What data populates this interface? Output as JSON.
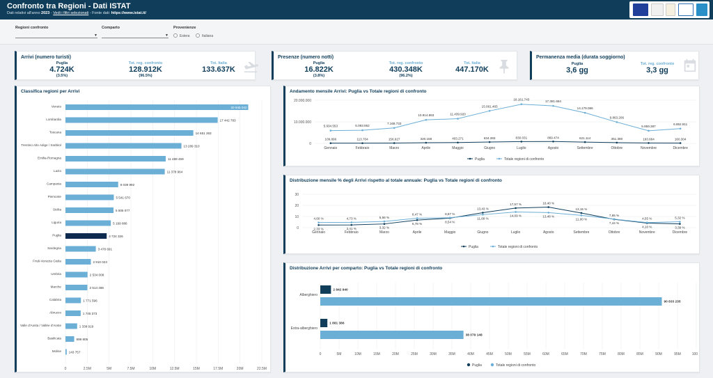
{
  "header": {
    "title": "Confronto tra Regioni - Dati ISTAT",
    "sub_prefix": "Dati relativi all'anno ",
    "year": "2023",
    "sub_sep1": " - ",
    "filters_link": "Vedi i filtri selezionati",
    "sub_sep2": " - Fonte dati: ",
    "source": "https://www.istat.it/"
  },
  "filters": {
    "regioni_label": "Regioni confronto",
    "comparto_label": "Comparto",
    "provenienze_label": "Provenienze",
    "options": [
      "Estera",
      "Italiana"
    ]
  },
  "kpis": {
    "arrivi": {
      "title": "Arrivi (numero turisti)",
      "puglia_label": "Puglia",
      "puglia_value": "4.724K",
      "puglia_pct": "(3.5%)",
      "conf_label": "Tot. reg. confronto",
      "conf_value": "128.912K",
      "conf_pct": "(96.5%)",
      "italia_label": "Tot. Italia",
      "italia_value": "133.637K",
      "icon": "plane-landing-icon"
    },
    "presenze": {
      "title": "Presenze (numero notti)",
      "puglia_label": "Puglia",
      "puglia_value": "16.822K",
      "puglia_pct": "(3.8%)",
      "conf_label": "Tot. reg. confronto",
      "conf_value": "430.348K",
      "conf_pct": "(96.2%)",
      "italia_label": "Tot. Italia",
      "italia_value": "447.170K",
      "icon": "pin-icon"
    },
    "permanenza": {
      "title": "Permanenza media (durata soggiorno)",
      "puglia_label": "Puglia",
      "puglia_value": "3,6 gg",
      "conf_label": "Tot. reg. confronto",
      "conf_value": "3,3 gg",
      "icon": "calendar-icon"
    }
  },
  "colors": {
    "dark": "#0f3d5a",
    "light": "#6baed6",
    "highlight": "#0d2b4e",
    "grid": "#e6e9ed"
  },
  "chart_data": [
    {
      "id": "classifica",
      "type": "bar",
      "title": "Classifica regioni per Arrivi",
      "orientation": "horizontal",
      "categories": [
        "Veneto",
        "Lombardia",
        "Toscana",
        "Trentino Alto Adige / Südtirol",
        "Emilia-Romagna",
        "Lazio",
        "Campania",
        "Piemonte",
        "Sicilia",
        "Liguria",
        "Puglia",
        "Sardegna",
        "Friuli-Venezia Giulia",
        "Umbria",
        "Marche",
        "Calabria",
        "Abruzzo",
        "Valle d'Aosta / Vallée d'Aoste",
        "Basilicata",
        "Molise"
      ],
      "values": [
        20.945042,
        17.442783,
        14.651263,
        13.28931,
        11.489459,
        11.378964,
        6.039992,
        5.54167,
        5.505077,
        5.199888,
        4.724326,
        3.478691,
        2.910023,
        2.534008,
        2.514486,
        1.771596,
        1.745373,
        1.338919,
        0.999805,
        0.143757
      ],
      "labels": [
        "20 945 042",
        "17 442 783",
        "14 651 263",
        "13 289 310",
        "11 489 459",
        "11 378 964",
        "6 039 992",
        "5 541 670",
        "5 505 077",
        "5 199 888",
        "4 724 326",
        "3 478 691",
        "2 910 023",
        "2 534 008",
        "2 514 486",
        "1 771 596",
        "1 745 373",
        "1 338 919",
        "999 805",
        "143 757"
      ],
      "highlight": "Puglia",
      "xticks": [
        "0",
        "2.5M",
        "5M",
        "7.5M",
        "10M",
        "12.5M",
        "15M",
        "17.5M",
        "20M",
        "22.5M"
      ],
      "xlim": [
        0,
        22.5
      ]
    },
    {
      "id": "andamento",
      "type": "line",
      "title": "Andamento mensile Arrivi: Puglia vs Totale regioni di confronto",
      "categories": [
        "Gennaio",
        "Febbraio",
        "Marzo",
        "Aprile",
        "Maggio",
        "Giugno",
        "Luglio",
        "Agosto",
        "Settembre",
        "Ottobre",
        "Novembre",
        "Dicembre"
      ],
      "series": [
        {
          "name": "Puglia",
          "values": [
            109896,
            113704,
            156927,
            320158,
            403271,
            634383,
            830031,
            869474,
            621114,
            351380,
            193684,
            160304
          ],
          "labels": [
            "109.896",
            "113.704",
            "156.927",
            "320.158",
            "403.271",
            "634.383",
            "830.031",
            "869.474",
            "621.114",
            "351.380",
            "193.684",
            "160.304"
          ]
        },
        {
          "name": "Totale regioni di confronto",
          "values": [
            5934553,
            6093952,
            7168733,
            10914863,
            11439920,
            15061465,
            18161743,
            17381664,
            14179086,
            9863206,
            5859387,
            6852811
          ],
          "labels": [
            "5.934.553",
            "6.093.952",
            "7.168.733",
            "10.914.863",
            "11.439.920",
            "15.061.465",
            "18.161.743",
            "17.381.664",
            "14.179.086",
            "9.863.206",
            "5.859.387",
            "6.852.811"
          ]
        }
      ],
      "yticks": [
        "0",
        "10.000.000",
        "20.000.000"
      ],
      "ylim": [
        0,
        20000000
      ],
      "legend": "bottom"
    },
    {
      "id": "distribuzione",
      "type": "line",
      "title": "Distribuzione mensile % degli Arrivi rispetto al totale annuale: Puglia vs Totale regioni di confronto",
      "categories": [
        "Gennaio",
        "Febbraio",
        "Marzo",
        "Aprile",
        "Maggio",
        "Giugno",
        "Luglio",
        "Agosto",
        "Settembre",
        "Ottobre",
        "Novembre",
        "Dicembre"
      ],
      "series": [
        {
          "name": "Puglia",
          "values": [
            2.33,
            2.41,
            3.32,
            6.78,
            8.54,
            13.43,
            17.57,
            18.4,
            13.15,
            7.44,
            4.1,
            3.39
          ],
          "labels": [
            "2,33 %",
            "2,41 %",
            "3,32 %",
            "6,78 %",
            "8,54 %",
            "13,43 %",
            "17,57 %",
            "18,40 %",
            "13,15 %",
            "7,44 %",
            "4,10 %",
            "3,39 %"
          ]
        },
        {
          "name": "Totale regioni di confronto",
          "values": [
            4.6,
            4.73,
            5.56,
            8.47,
            8.87,
            11.68,
            14.09,
            13.48,
            11.0,
            7.65,
            4.55,
            5.32
          ],
          "labels": [
            "4,60 %",
            "4,73 %",
            "5,56 %",
            "8,47 %",
            "8,87 %",
            "11,68 %",
            "14,09 %",
            "13,48 %",
            "11,00 %",
            "7,65 %",
            "4,55 %",
            "5,32 %"
          ]
        }
      ],
      "yticks": [
        "0",
        "10",
        "20",
        "30"
      ],
      "ylim": [
        0,
        30
      ],
      "legend": "bottom"
    },
    {
      "id": "comparto",
      "type": "bar",
      "title": "Distribuzione Arrivi per comparto: Puglia vs Totale regioni di confronto",
      "orientation": "horizontal",
      "categories": [
        "Alberghiero",
        "Extra-alberghiero"
      ],
      "series": [
        {
          "name": "Puglia",
          "values": [
            2842940,
            1881386
          ],
          "labels": [
            "2 842 940",
            "1 881 386"
          ]
        },
        {
          "name": "Totale regioni di confronto",
          "values": [
            90833235,
            38079148
          ],
          "labels": [
            "90 833 235",
            "38 079 148"
          ]
        }
      ],
      "xticks": [
        "0",
        "5M",
        "10M",
        "15M",
        "20M",
        "25M",
        "30M",
        "35M",
        "40M",
        "45M",
        "50M",
        "55M",
        "60M",
        "65M",
        "70M",
        "75M",
        "80M",
        "85M",
        "90M",
        "95M",
        "100M"
      ],
      "xlim": [
        0,
        100000000
      ],
      "legend": "bottom"
    }
  ]
}
